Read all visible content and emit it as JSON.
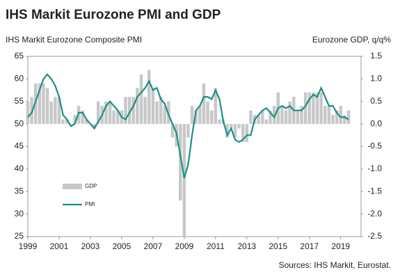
{
  "chart_data": {
    "type": "combo",
    "title": "IHS Markit Eurozone PMI and GDP",
    "y_label": "IHS Markit Eurozone Composite PMI",
    "y2_label": "Eurozone GDP, q/q%",
    "source": "Sources: IHS Markit, Eurostat.",
    "x": [
      1999,
      1999.25,
      1999.5,
      1999.75,
      2000,
      2000.25,
      2000.5,
      2000.75,
      2001,
      2001.25,
      2001.5,
      2001.75,
      2002,
      2002.25,
      2002.5,
      2002.75,
      2003,
      2003.25,
      2003.5,
      2003.75,
      2004,
      2004.25,
      2004.5,
      2004.75,
      2005,
      2005.25,
      2005.5,
      2005.75,
      2006,
      2006.25,
      2006.5,
      2006.75,
      2007,
      2007.25,
      2007.5,
      2007.75,
      2008,
      2008.25,
      2008.5,
      2008.75,
      2009,
      2009.25,
      2009.5,
      2009.75,
      2010,
      2010.25,
      2010.5,
      2010.75,
      2011,
      2011.25,
      2011.5,
      2011.75,
      2012,
      2012.25,
      2012.5,
      2012.75,
      2013,
      2013.25,
      2013.5,
      2013.75,
      2014,
      2014.25,
      2014.5,
      2014.75,
      2015,
      2015.25,
      2015.5,
      2015.75,
      2016,
      2016.25,
      2016.5,
      2016.75,
      2017,
      2017.25,
      2017.5,
      2017.75,
      2018,
      2018.25,
      2018.5,
      2018.75,
      2019,
      2019.25,
      2019.5
    ],
    "series": [
      {
        "name": "GDP",
        "type": "bar",
        "axis": "y2",
        "color": "#c8c8c8",
        "values": [
          0.5,
          0.6,
          0.9,
          0.9,
          0.9,
          0.8,
          0.5,
          0.6,
          0.6,
          0.1,
          0.1,
          0.0,
          0.2,
          0.4,
          0.3,
          0.1,
          0.0,
          -0.1,
          0.5,
          0.4,
          0.5,
          0.5,
          0.3,
          0.3,
          0.3,
          0.6,
          0.6,
          0.6,
          0.8,
          1.1,
          0.6,
          1.2,
          0.8,
          0.5,
          0.6,
          0.4,
          0.5,
          -0.3,
          -0.5,
          -1.7,
          -2.5,
          -0.3,
          0.4,
          0.3,
          0.4,
          0.9,
          0.5,
          0.3,
          0.8,
          0.1,
          0.1,
          -0.3,
          -0.1,
          -0.3,
          -0.1,
          -0.4,
          -0.4,
          0.3,
          0.2,
          0.2,
          0.3,
          0.1,
          0.3,
          0.4,
          0.7,
          0.4,
          0.3,
          0.5,
          0.6,
          0.3,
          0.4,
          0.7,
          0.7,
          0.7,
          0.7,
          0.7,
          0.4,
          0.4,
          0.2,
          0.3,
          0.4,
          0.2,
          0.3
        ]
      },
      {
        "name": "PMI",
        "type": "line",
        "color": "#1a8f86",
        "values": [
          51.5,
          52.5,
          55,
          57.5,
          60,
          61,
          60,
          58.5,
          56,
          52,
          51,
          49.5,
          50,
          52.5,
          52.5,
          51,
          50,
          49,
          50.5,
          52,
          54,
          55,
          54,
          53,
          51.5,
          51,
          52.5,
          54,
          56,
          57,
          58,
          59.5,
          57.5,
          58,
          55.5,
          54.5,
          52,
          50,
          48,
          43,
          38,
          41,
          47.5,
          53,
          54,
          56,
          56,
          55.5,
          57.5,
          55.5,
          50.5,
          47.5,
          49,
          46.5,
          46,
          46.5,
          47.5,
          47.5,
          51,
          52,
          53,
          53.5,
          52.5,
          51.5,
          53.5,
          54,
          53.5,
          54,
          53,
          53,
          53,
          54,
          55.5,
          56.5,
          56,
          58,
          56,
          54,
          54,
          52.5,
          51.5,
          51.5,
          51
        ]
      }
    ],
    "xlim": [
      1999,
      2020.3
    ],
    "xticks": [
      1999,
      2001,
      2003,
      2005,
      2007,
      2009,
      2011,
      2013,
      2015,
      2017,
      2019
    ],
    "ylim": [
      25,
      65
    ],
    "yticks": [
      25,
      30,
      35,
      40,
      45,
      50,
      55,
      60,
      65
    ],
    "y2lim": [
      -2.5,
      1.5
    ],
    "y2ticks": [
      1.5,
      {
        "value": 1,
        "label": "1.0"
      },
      0.5,
      {
        "value": 0,
        "label": "0.0"
      },
      -0.5,
      {
        "value": -1,
        "label": "-1.0"
      },
      -1.5,
      {
        "value": -2,
        "label": "-2.0"
      },
      -2.5
    ],
    "legend": "lower-left"
  }
}
